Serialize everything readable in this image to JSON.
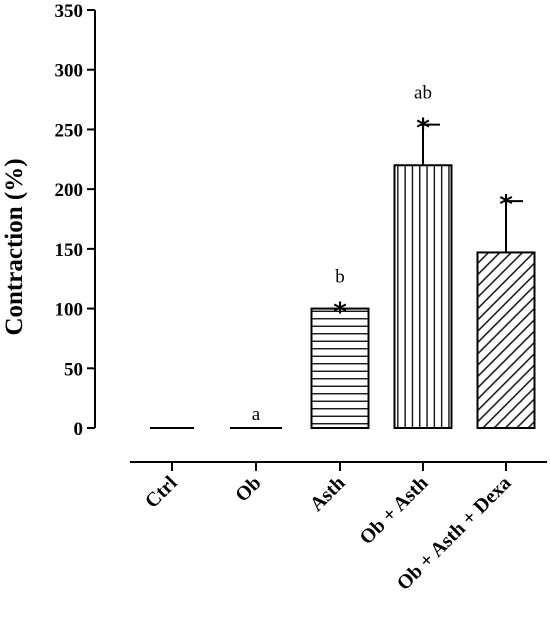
{
  "chart_data": {
    "type": "bar",
    "title": "",
    "xlabel": "",
    "ylabel": "Contraction (%)",
    "ylim": [
      0,
      350
    ],
    "yticks": [
      0,
      50,
      100,
      150,
      200,
      250,
      300,
      350
    ],
    "categories": [
      "Ctrl",
      "Ob",
      "Asth",
      "Ob + Asth",
      "Ob + Asth + Dexa"
    ],
    "values": [
      0,
      0,
      100,
      220,
      147
    ],
    "error": [
      0,
      0,
      0,
      34,
      43
    ],
    "fill_patterns": [
      "none",
      "none",
      "horizontal-lines",
      "vertical-lines",
      "diagonal-lines"
    ],
    "significance_letters": [
      "",
      "a",
      "b",
      "ab",
      ""
    ],
    "significance_stars": [
      false,
      false,
      true,
      true,
      true
    ],
    "star_symbol": "*"
  }
}
